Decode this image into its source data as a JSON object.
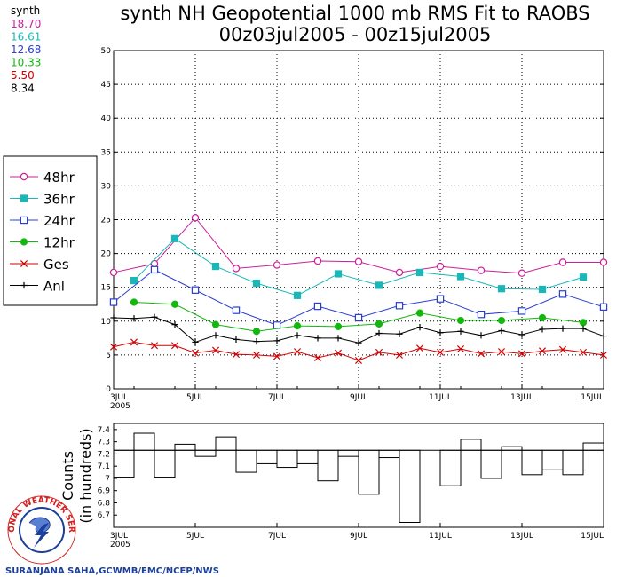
{
  "title": {
    "line1": "synth NH Geopotential 1000 mb RMS Fit to RAOBS",
    "line2": "00z03jul2005 - 00z15jul2005"
  },
  "stats": {
    "header": "synth",
    "items": [
      {
        "value": "18.70",
        "color": "#cc1f9a"
      },
      {
        "value": "16.61",
        "color": "#19b8b8"
      },
      {
        "value": "12.68",
        "color": "#2b3fcf"
      },
      {
        "value": "10.33",
        "color": "#13b80f"
      },
      {
        "value": "5.50",
        "color": "#d10000"
      },
      {
        "value": "8.34",
        "color": "#000000"
      }
    ]
  },
  "credit": "SURANJANA SAHA,GCWMB/EMC/NCEP/NWS",
  "logo_text": "NATIONAL WEATHER SERVICE",
  "chart_data": [
    {
      "type": "line",
      "x": [
        0,
        0.5,
        1,
        1.5,
        2,
        2.5,
        3,
        3.5,
        4,
        4.5,
        5,
        5.5,
        6,
        6.5,
        7,
        7.5,
        8,
        8.5,
        9,
        9.5,
        10,
        10.5,
        11,
        11.5,
        12
      ],
      "xlim": [
        0,
        12
      ],
      "x_ticks": [
        {
          "x": 0,
          "label": "3JUL",
          "sub": "2005"
        },
        {
          "x": 2,
          "label": "5JUL"
        },
        {
          "x": 4,
          "label": "7JUL"
        },
        {
          "x": 6,
          "label": "9JUL"
        },
        {
          "x": 8,
          "label": "11JUL"
        },
        {
          "x": 10,
          "label": "13JUL"
        },
        {
          "x": 12,
          "label": "15JUL"
        }
      ],
      "ylim": [
        0,
        50
      ],
      "y_ticks": [
        "0",
        "5",
        "10",
        "15",
        "20",
        "25",
        "30",
        "35",
        "40",
        "45",
        "50"
      ],
      "series": [
        {
          "name": "48hr",
          "color": "#cc1f9a",
          "marker": "open-circle",
          "values": [
            17.2,
            null,
            18.5,
            null,
            25.3,
            null,
            17.8,
            null,
            18.3,
            null,
            18.9,
            null,
            18.8,
            null,
            17.2,
            null,
            18.1,
            null,
            17.5,
            null,
            17.1,
            null,
            18.7,
            null,
            18.7
          ]
        },
        {
          "name": "36hr",
          "color": "#19b8b8",
          "marker": "filled-square",
          "values": [
            null,
            16.0,
            null,
            22.2,
            null,
            18.1,
            null,
            15.6,
            null,
            13.8,
            null,
            17.0,
            null,
            15.3,
            null,
            17.2,
            null,
            16.6,
            null,
            14.8,
            null,
            14.7,
            null,
            16.5,
            null
          ]
        },
        {
          "name": "24hr",
          "color": "#2b3fcf",
          "marker": "open-square",
          "values": [
            12.8,
            null,
            17.6,
            null,
            14.6,
            null,
            11.6,
            null,
            9.4,
            null,
            12.2,
            null,
            10.5,
            null,
            12.3,
            null,
            13.3,
            null,
            11.0,
            null,
            11.5,
            null,
            14.0,
            null,
            12.1
          ]
        },
        {
          "name": "12hr",
          "color": "#13b80f",
          "marker": "filled-circle",
          "values": [
            null,
            12.8,
            null,
            12.5,
            null,
            9.5,
            null,
            8.5,
            null,
            9.3,
            null,
            9.2,
            null,
            9.6,
            null,
            11.2,
            null,
            10.1,
            null,
            10.1,
            null,
            10.5,
            null,
            9.8,
            null
          ]
        },
        {
          "name": "Ges",
          "color": "#d10000",
          "marker": "x",
          "values": [
            6.2,
            6.9,
            6.4,
            6.4,
            5.3,
            5.7,
            5.1,
            5.0,
            4.8,
            5.5,
            4.6,
            5.3,
            4.2,
            5.4,
            5.0,
            6.0,
            5.4,
            5.9,
            5.2,
            5.5,
            5.2,
            5.6,
            5.8,
            5.4,
            5.0
          ]
        },
        {
          "name": "Anl",
          "color": "#000000",
          "marker": "plus",
          "values": [
            10.5,
            10.4,
            10.6,
            9.5,
            6.9,
            7.9,
            7.3,
            7.0,
            7.1,
            7.9,
            7.5,
            7.5,
            6.8,
            8.2,
            8.1,
            9.1,
            8.3,
            8.5,
            7.9,
            8.6,
            8.0,
            8.8,
            8.9,
            8.9,
            7.8
          ]
        }
      ]
    },
    {
      "type": "bar",
      "ylabel_lines": [
        "Counts",
        "(in hundreds)"
      ],
      "xlim": [
        0,
        12
      ],
      "ylim": [
        6.6,
        7.45
      ],
      "y_ticks": [
        "6.7",
        "6.8",
        "6.9",
        "7",
        "7.1",
        "7.2",
        "7.3",
        "7.4"
      ],
      "x_ticks": [
        {
          "x": 0,
          "label": "3JUL",
          "sub": "2005"
        },
        {
          "x": 2,
          "label": "5JUL"
        },
        {
          "x": 4,
          "label": "7JUL"
        },
        {
          "x": 6,
          "label": "9JUL"
        },
        {
          "x": 8,
          "label": "11JUL"
        },
        {
          "x": 10,
          "label": "13JUL"
        },
        {
          "x": 12,
          "label": "15JUL"
        }
      ],
      "reference": 7.23,
      "values": [
        7.01,
        7.37,
        7.01,
        7.28,
        7.18,
        7.34,
        7.05,
        7.12,
        7.09,
        7.12,
        6.98,
        7.18,
        6.87,
        7.17,
        6.64,
        7.23,
        6.94,
        7.32,
        7.0,
        7.26,
        7.03,
        7.07,
        7.03,
        7.29
      ]
    }
  ]
}
